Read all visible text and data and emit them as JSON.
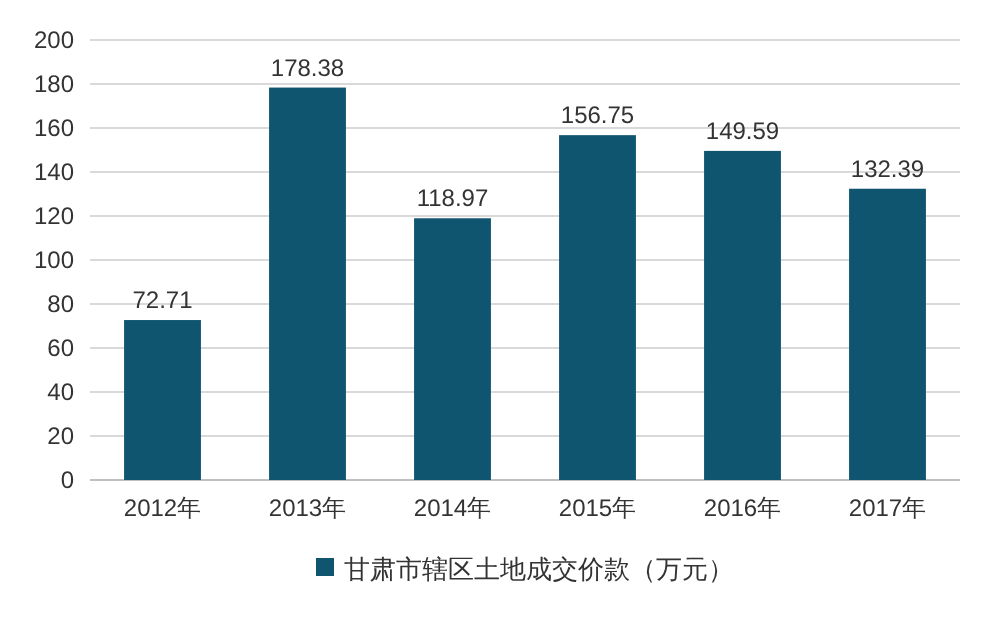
{
  "chart_data": {
    "type": "bar",
    "categories": [
      "2012年",
      "2013年",
      "2014年",
      "2015年",
      "2016年",
      "2017年"
    ],
    "series": [
      {
        "name": "甘肃市辖区土地成交价款（万元）",
        "color": "#0f5570",
        "values": [
          72.71,
          178.38,
          118.97,
          156.75,
          149.59,
          132.39
        ]
      }
    ],
    "ylim": [
      0,
      200
    ],
    "yticks": [
      0,
      20,
      40,
      60,
      80,
      100,
      120,
      140,
      160,
      180,
      200
    ],
    "grid": "y",
    "legend": "bottom",
    "data_labels": true
  }
}
